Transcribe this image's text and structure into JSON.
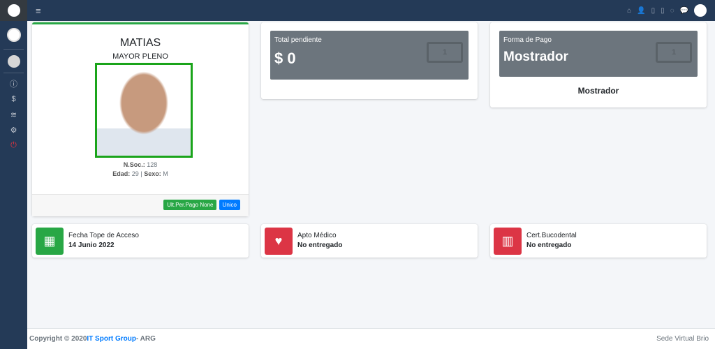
{
  "sidebar": {
    "items": [
      {
        "icon": "info-icon",
        "g": "ⓘ"
      },
      {
        "icon": "dollar-icon",
        "g": "$"
      },
      {
        "icon": "layers-icon",
        "g": "≋"
      },
      {
        "icon": "cogs-icon",
        "g": "⚙"
      },
      {
        "icon": "power-icon",
        "g": "⏻"
      }
    ]
  },
  "topbar": {
    "menu": "≡",
    "icons": [
      "⌂",
      "👤",
      "▯",
      "▯",
      "◌",
      "💬"
    ]
  },
  "profile": {
    "name": "MATIAS",
    "category": "MAYOR PLENO",
    "nsoc_label": "N.Soc.:",
    "nsoc": "128",
    "edad_label": "Edad:",
    "edad": "29",
    "sexo_label": "Sexo:",
    "sexo": "M",
    "sep": "|",
    "btn_pago": "Ult.Per.Pago  None",
    "btn_unico": "Unico"
  },
  "total": {
    "label": "Total pendiente",
    "value": "$ 0"
  },
  "pago": {
    "label": "Forma de Pago",
    "value": "Mostrador",
    "sub": "Mostrador"
  },
  "info": [
    {
      "title": "Fecha Tope de Acceso",
      "value": "14 Junio 2022",
      "color": "#28a745",
      "icon": "calendar-icon"
    },
    {
      "title": "Apto Médico",
      "value": "No entregado",
      "color": "#dc3545",
      "icon": "heart-pulse-icon"
    },
    {
      "title": "Cert.Bucodental",
      "value": "No entregado",
      "color": "#dc3545",
      "icon": "teeth-icon"
    }
  ],
  "footer": {
    "copy": "Copyright © 2020 ",
    "brand": "IT Sport Group",
    "suffix": " - ARG",
    "right": "Sede Virtual Brio"
  }
}
